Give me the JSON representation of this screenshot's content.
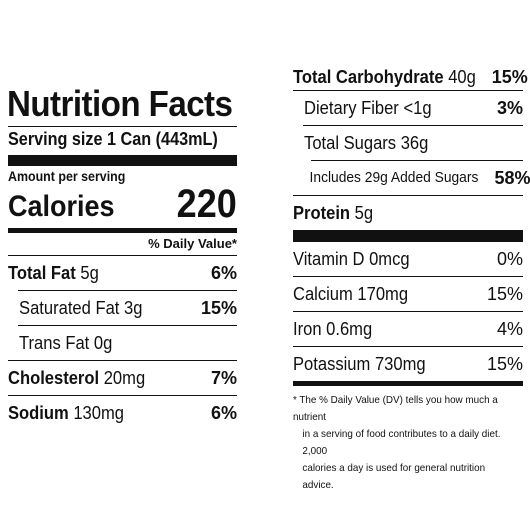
{
  "label": {
    "title": "Nutrition Facts",
    "serving_size": "Serving size 1 Can (443mL)",
    "amount_per_serving": "Amount per serving",
    "calories_label": "Calories",
    "calories_value": "220",
    "dv_header": "% Daily Value*"
  },
  "left_rows": [
    {
      "name": "Total Fat",
      "amount": "5g",
      "pct": "6%"
    },
    {
      "name": "Saturated Fat",
      "amount": "3g",
      "pct": "15%"
    },
    {
      "name": "Trans Fat",
      "amount": "0g",
      "pct": ""
    },
    {
      "name": "Cholesterol",
      "amount": "20mg",
      "pct": "7%"
    },
    {
      "name": "Sodium",
      "amount": "130mg",
      "pct": "6%"
    }
  ],
  "right_rows": [
    {
      "name": "Total Carbohydrate",
      "amount": "40g",
      "pct": "15%"
    },
    {
      "name": "Dietary Fiber",
      "amount": "<1g",
      "pct": "3%"
    },
    {
      "name": "Total Sugars",
      "amount": "36g",
      "pct": ""
    },
    {
      "name": "Includes 29g Added Sugars",
      "amount": "",
      "pct": "58%"
    },
    {
      "name": "Protein",
      "amount": "5g",
      "pct": ""
    }
  ],
  "vitamins": [
    {
      "name": "Vitamin D",
      "amount": "0mcg",
      "pct": "0%"
    },
    {
      "name": "Calcium",
      "amount": "170mg",
      "pct": "15%"
    },
    {
      "name": "Iron",
      "amount": "0.6mg",
      "pct": "4%"
    },
    {
      "name": "Potassium",
      "amount": "730mg",
      "pct": "15%"
    }
  ],
  "footnote": {
    "line1": "* The % Daily Value (DV) tells you how much a nutrient",
    "line2": "in a serving of food contributes to a daily diet. 2,000",
    "line3": "calories a day is used for general nutrition advice."
  }
}
